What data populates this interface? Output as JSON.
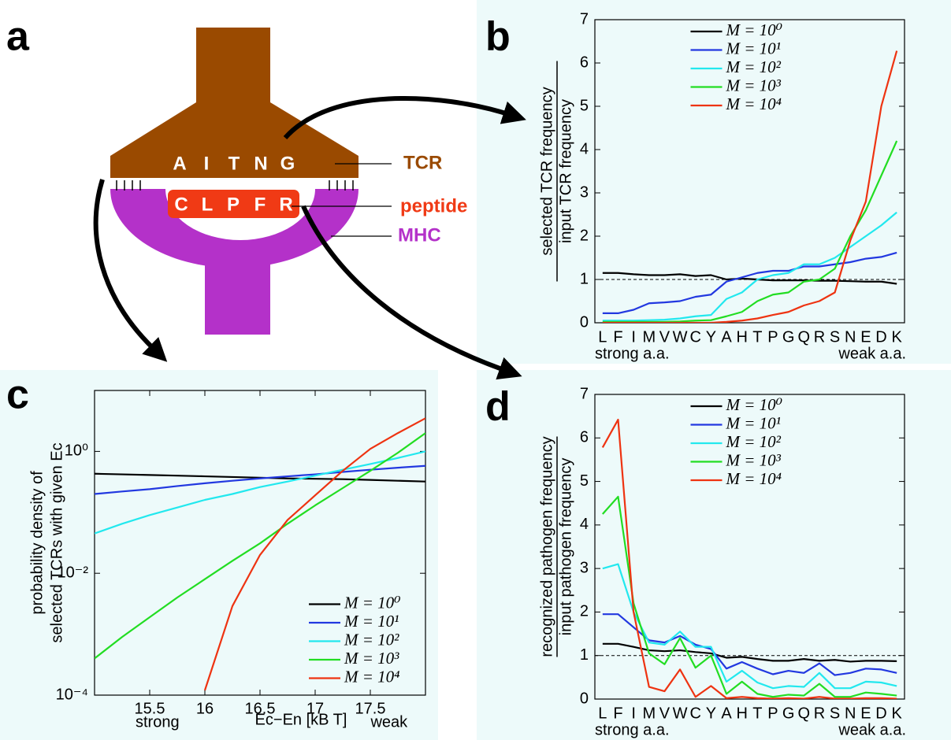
{
  "panel_labels": [
    "a",
    "b",
    "c",
    "d"
  ],
  "diagram": {
    "tcr_residues": [
      "A",
      "I",
      "T",
      "N",
      "G"
    ],
    "peptide_residues": [
      "C",
      "L",
      "P",
      "F",
      "R"
    ],
    "tcr_label": "TCR",
    "peptide_label": "peptide",
    "mhc_label": "MHC"
  },
  "chart_data": [
    {
      "type": "line",
      "ylabel": [
        "selected TCR frequency",
        "input TCR frequency"
      ],
      "ylabel_fraction": true,
      "categories": [
        "L",
        "F",
        "I",
        "M",
        "V",
        "W",
        "C",
        "Y",
        "A",
        "H",
        "T",
        "P",
        "G",
        "Q",
        "R",
        "S",
        "N",
        "E",
        "D",
        "K"
      ],
      "end_labels": [
        "strong a.a.",
        "weak a.a."
      ],
      "ylim": [
        0,
        7
      ],
      "yticks": [
        0,
        1,
        2,
        3,
        4,
        5,
        6,
        7
      ],
      "reference_line": 1,
      "legend": "upper center",
      "series": [
        {
          "name": "M = 10⁰",
          "color": "#000000",
          "values": [
            1.15,
            1.15,
            1.12,
            1.1,
            1.1,
            1.12,
            1.08,
            1.1,
            1.0,
            1.02,
            1.0,
            0.98,
            0.98,
            0.98,
            0.97,
            0.97,
            0.96,
            0.95,
            0.95,
            0.9
          ]
        },
        {
          "name": "M = 10¹",
          "color": "#2238e0",
          "values": [
            0.22,
            0.22,
            0.3,
            0.45,
            0.47,
            0.5,
            0.6,
            0.65,
            0.95,
            1.05,
            1.15,
            1.2,
            1.2,
            1.3,
            1.3,
            1.35,
            1.4,
            1.48,
            1.52,
            1.62
          ]
        },
        {
          "name": "M = 10²",
          "color": "#22e8ee",
          "values": [
            0.05,
            0.05,
            0.05,
            0.06,
            0.07,
            0.1,
            0.15,
            0.18,
            0.55,
            0.7,
            1.0,
            1.1,
            1.15,
            1.35,
            1.35,
            1.5,
            1.75,
            2.0,
            2.25,
            2.55
          ]
        },
        {
          "name": "M = 10³",
          "color": "#22dd22",
          "values": [
            0.02,
            0.02,
            0.02,
            0.02,
            0.02,
            0.03,
            0.05,
            0.06,
            0.15,
            0.25,
            0.5,
            0.65,
            0.7,
            0.95,
            1.0,
            1.25,
            2.0,
            2.6,
            3.4,
            4.2
          ]
        },
        {
          "name": "M = 10⁴",
          "color": "#ee3311",
          "values": [
            0,
            0,
            0,
            0,
            0,
            0,
            0,
            0,
            0.02,
            0.05,
            0.1,
            0.18,
            0.25,
            0.4,
            0.5,
            0.7,
            1.9,
            2.8,
            5.0,
            6.28
          ]
        }
      ]
    },
    {
      "type": "line",
      "ylabel": [
        "probability density of",
        "selected TCRs with given Ec"
      ],
      "ylabel_fraction": false,
      "xlabel": "Ec−En [kB T]",
      "end_labels": [
        "strong",
        "weak"
      ],
      "log_y": true,
      "x": [
        15,
        15.25,
        15.5,
        15.75,
        16,
        16.25,
        16.5,
        16.75,
        17,
        17.25,
        17.5,
        17.75,
        18
      ],
      "xlim": [
        15,
        18
      ],
      "xticks": [
        15.5,
        16,
        16.5,
        17,
        17.5
      ],
      "ylim": [
        0.0001,
        10
      ],
      "yticks": [
        {
          "value": 0.0001,
          "label": "10⁻⁴"
        },
        {
          "value": 0.01,
          "label": "10⁻²"
        },
        {
          "value": 1,
          "label": "10⁰"
        }
      ],
      "legend": "lower right",
      "series": [
        {
          "name": "M = 10⁰",
          "color": "#000000",
          "values": [
            0.43,
            0.42,
            0.41,
            0.4,
            0.39,
            0.38,
            0.37,
            0.36,
            0.355,
            0.35,
            0.34,
            0.33,
            0.32
          ]
        },
        {
          "name": "M = 10¹",
          "color": "#2238e0",
          "values": [
            0.2,
            0.22,
            0.24,
            0.27,
            0.3,
            0.33,
            0.36,
            0.39,
            0.42,
            0.46,
            0.5,
            0.54,
            0.58
          ]
        },
        {
          "name": "M = 10²",
          "color": "#22e8ee",
          "values": [
            0.045,
            0.065,
            0.09,
            0.12,
            0.16,
            0.2,
            0.26,
            0.32,
            0.4,
            0.5,
            0.62,
            0.78,
            1.0
          ]
        },
        {
          "name": "M = 10³",
          "color": "#22dd22",
          "values": [
            0.0004,
            0.0009,
            0.0019,
            0.004,
            0.008,
            0.016,
            0.031,
            0.065,
            0.13,
            0.25,
            0.48,
            0.95,
            2.0
          ]
        },
        {
          "name": "M = 10⁴",
          "color": "#ee3311",
          "values": [
            null,
            null,
            null,
            null,
            0.00012,
            0.0029,
            0.02,
            0.075,
            0.19,
            0.48,
            1.1,
            2.0,
            3.5
          ]
        }
      ]
    },
    {
      "type": "line",
      "ylabel": [
        "recognized pathogen frequency",
        "input pathogen frequency"
      ],
      "ylabel_fraction": true,
      "categories": [
        "L",
        "F",
        "I",
        "M",
        "V",
        "W",
        "C",
        "Y",
        "A",
        "H",
        "T",
        "P",
        "G",
        "Q",
        "R",
        "S",
        "N",
        "E",
        "D",
        "K"
      ],
      "end_labels": [
        "strong a.a.",
        "weak a.a."
      ],
      "ylim": [
        0,
        7
      ],
      "yticks": [
        0,
        1,
        2,
        3,
        4,
        5,
        6,
        7
      ],
      "reference_line": 1,
      "legend": "upper center",
      "series": [
        {
          "name": "M = 10⁰",
          "color": "#000000",
          "values": [
            1.27,
            1.27,
            1.2,
            1.12,
            1.1,
            1.12,
            1.08,
            1.05,
            0.95,
            0.97,
            0.92,
            0.88,
            0.88,
            0.92,
            0.88,
            0.9,
            0.86,
            0.88,
            0.88,
            0.87
          ]
        },
        {
          "name": "M = 10¹",
          "color": "#2238e0",
          "values": [
            1.95,
            1.95,
            1.65,
            1.35,
            1.3,
            1.45,
            1.25,
            1.15,
            0.7,
            0.85,
            0.7,
            0.57,
            0.65,
            0.6,
            0.82,
            0.55,
            0.6,
            0.7,
            0.68,
            0.6
          ]
        },
        {
          "name": "M = 10²",
          "color": "#22e8ee",
          "values": [
            3.0,
            3.1,
            2.0,
            1.3,
            1.25,
            1.55,
            1.2,
            1.2,
            0.4,
            0.65,
            0.38,
            0.25,
            0.3,
            0.28,
            0.6,
            0.25,
            0.25,
            0.4,
            0.38,
            0.3
          ]
        },
        {
          "name": "M = 10³",
          "color": "#22dd22",
          "values": [
            4.25,
            4.65,
            2.2,
            1.05,
            0.8,
            1.4,
            0.72,
            1.0,
            0.12,
            0.4,
            0.12,
            0.05,
            0.1,
            0.08,
            0.35,
            0.05,
            0.05,
            0.15,
            0.12,
            0.08
          ]
        },
        {
          "name": "M = 10⁴",
          "color": "#ee3311",
          "values": [
            5.78,
            6.42,
            2.0,
            0.28,
            0.18,
            0.68,
            0.05,
            0.3,
            0.02,
            0.05,
            0.02,
            0.01,
            0.02,
            0.01,
            0.05,
            0.01,
            0.01,
            0.02,
            0.02,
            0.01
          ]
        }
      ]
    }
  ]
}
